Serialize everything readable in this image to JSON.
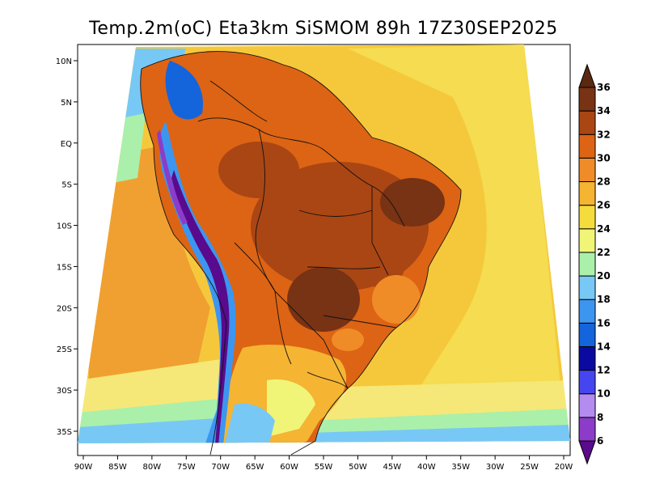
{
  "title": "Temp.2m(oC) Eta3km SiSMOM 89h 17Z30SEP2025",
  "map": {
    "x_axis_labels": [
      "90W",
      "85W",
      "80W",
      "75W",
      "70W",
      "65W",
      "60W",
      "55W",
      "50W",
      "45W",
      "40W",
      "35W",
      "30W",
      "25W",
      "20W"
    ],
    "y_axis_labels": [
      "10N",
      "5N",
      "EQ",
      "5S",
      "10S",
      "15S",
      "20S",
      "25S",
      "30S",
      "35S"
    ],
    "lon_range": [
      -90,
      -20
    ],
    "lat_range": [
      -38,
      12
    ]
  },
  "colorbar": {
    "levels": [
      "6",
      "8",
      "10",
      "12",
      "14",
      "16",
      "18",
      "20",
      "22",
      "24",
      "26",
      "28",
      "30",
      "32",
      "34",
      "36"
    ],
    "colors": [
      "#5a0a8c",
      "#8c3cc8",
      "#b48cf0",
      "#4646f0",
      "#0a0aa0",
      "#1464dc",
      "#3c96f0",
      "#78c8f5",
      "#aaf0aa",
      "#f0f578",
      "#f5dc3c",
      "#f5b432",
      "#f08c28",
      "#dc6414",
      "#aa4614",
      "#783214",
      "#5a2810"
    ],
    "labels_visible": true
  }
}
